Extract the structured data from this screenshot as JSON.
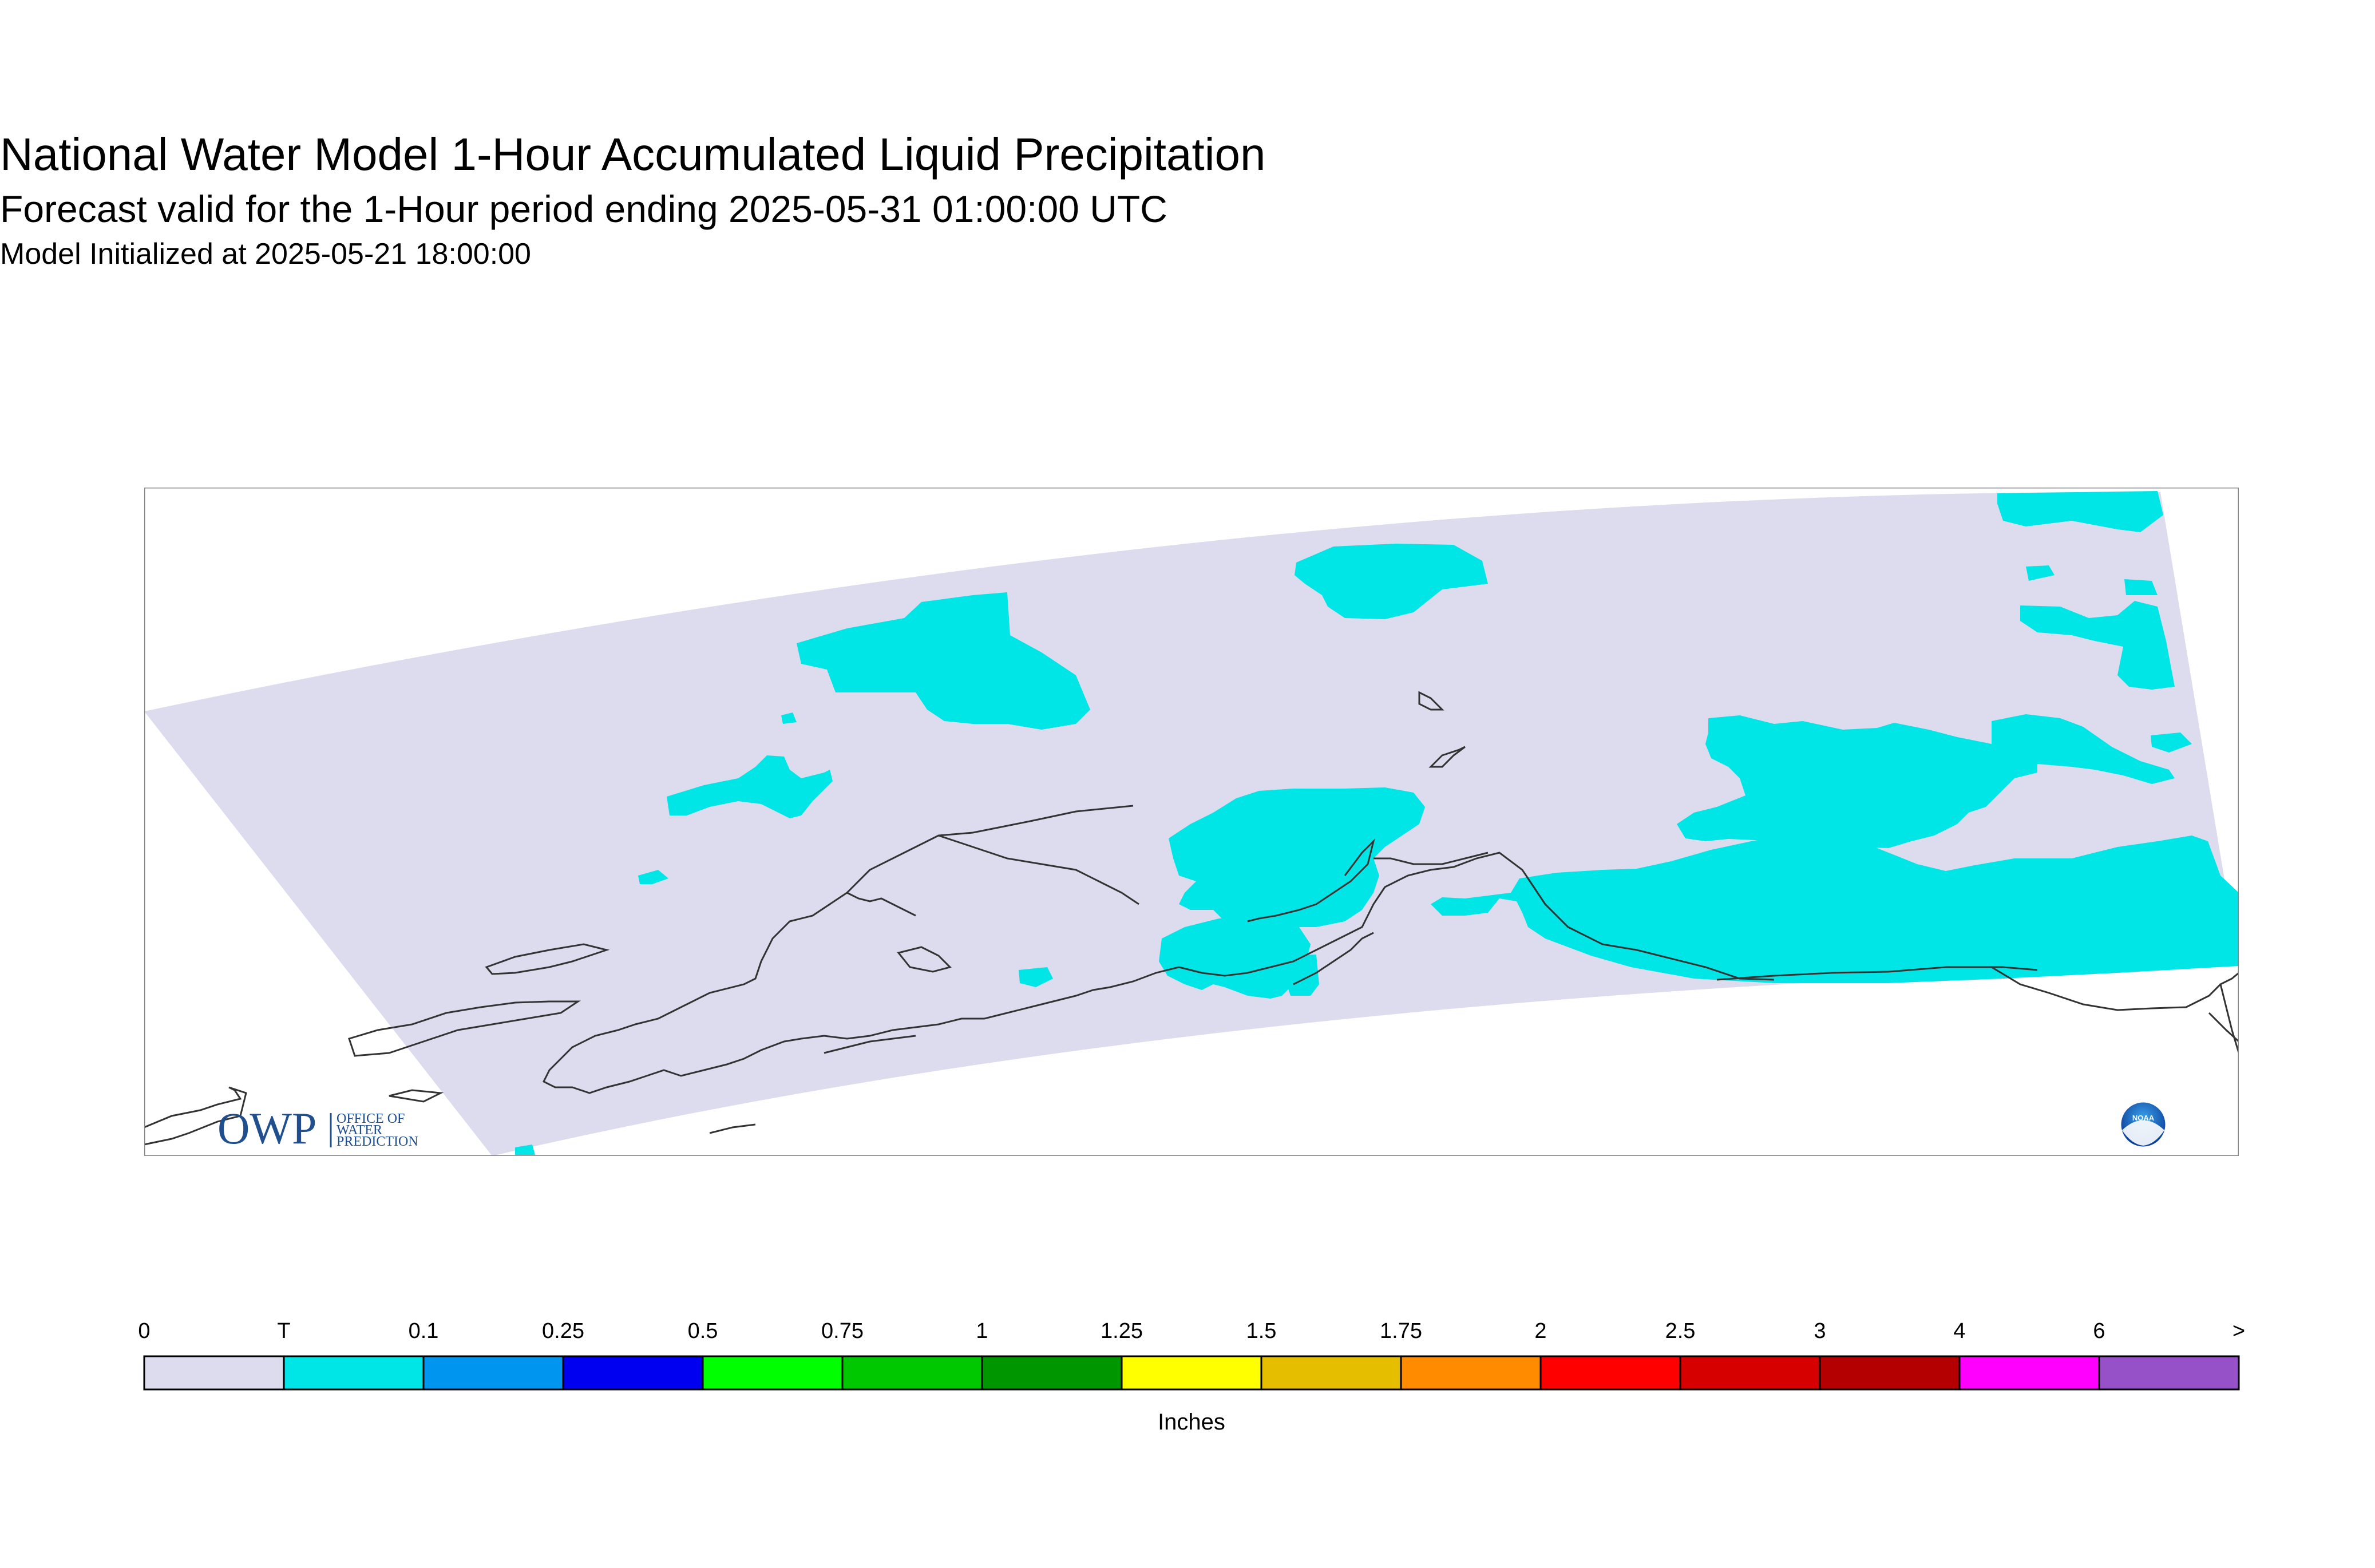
{
  "title": {
    "main": "National Water Model 1-Hour Accumulated Liquid Precipitation",
    "forecast": "Forecast valid for the 1-Hour period ending 2025-05-31 01:00:00 UTC",
    "initialized": "Model Initialized at 2025-05-21 18:00:00"
  },
  "logos": {
    "owp_mark": "OWP",
    "owp_line1": "OFFICE OF",
    "owp_line2": "WATER",
    "owp_line3": "PREDICTION",
    "noaa_mark": "NOAA"
  },
  "colorbar": {
    "unit_label": "Inches",
    "tick_labels": [
      "0",
      "T",
      "0.1",
      "0.25",
      "0.5",
      "0.75",
      "1",
      "1.25",
      "1.5",
      "1.75",
      "2",
      "2.5",
      "3",
      "4",
      "6",
      ">"
    ],
    "bins": [
      {
        "range": "0–T",
        "color": "#dcdcee"
      },
      {
        "range": "T–0.1",
        "color": "#00e5e5"
      },
      {
        "range": "0.1–0.25",
        "color": "#0096f0"
      },
      {
        "range": "0.25–0.5",
        "color": "#0000f0"
      },
      {
        "range": "0.5–0.75",
        "color": "#00ff00"
      },
      {
        "range": "0.75–1",
        "color": "#00c800"
      },
      {
        "range": "1–1.25",
        "color": "#009600"
      },
      {
        "range": "1.25–1.5",
        "color": "#ffff00"
      },
      {
        "range": "1.5–1.75",
        "color": "#e6be00"
      },
      {
        "range": "1.75–2",
        "color": "#ff8c00"
      },
      {
        "range": "2–2.5",
        "color": "#ff0000"
      },
      {
        "range": "2.5–3",
        "color": "#d70000"
      },
      {
        "range": "3–4",
        "color": "#b40000"
      },
      {
        "range": "4–6",
        "color": "#ff00ff"
      },
      {
        "range": "6+",
        "color": "#9650c8"
      }
    ]
  },
  "map_colors": {
    "no_precip": "#dcdcee",
    "trace": "#00e5e5",
    "coastline": "#333333",
    "frame": "#888888"
  }
}
